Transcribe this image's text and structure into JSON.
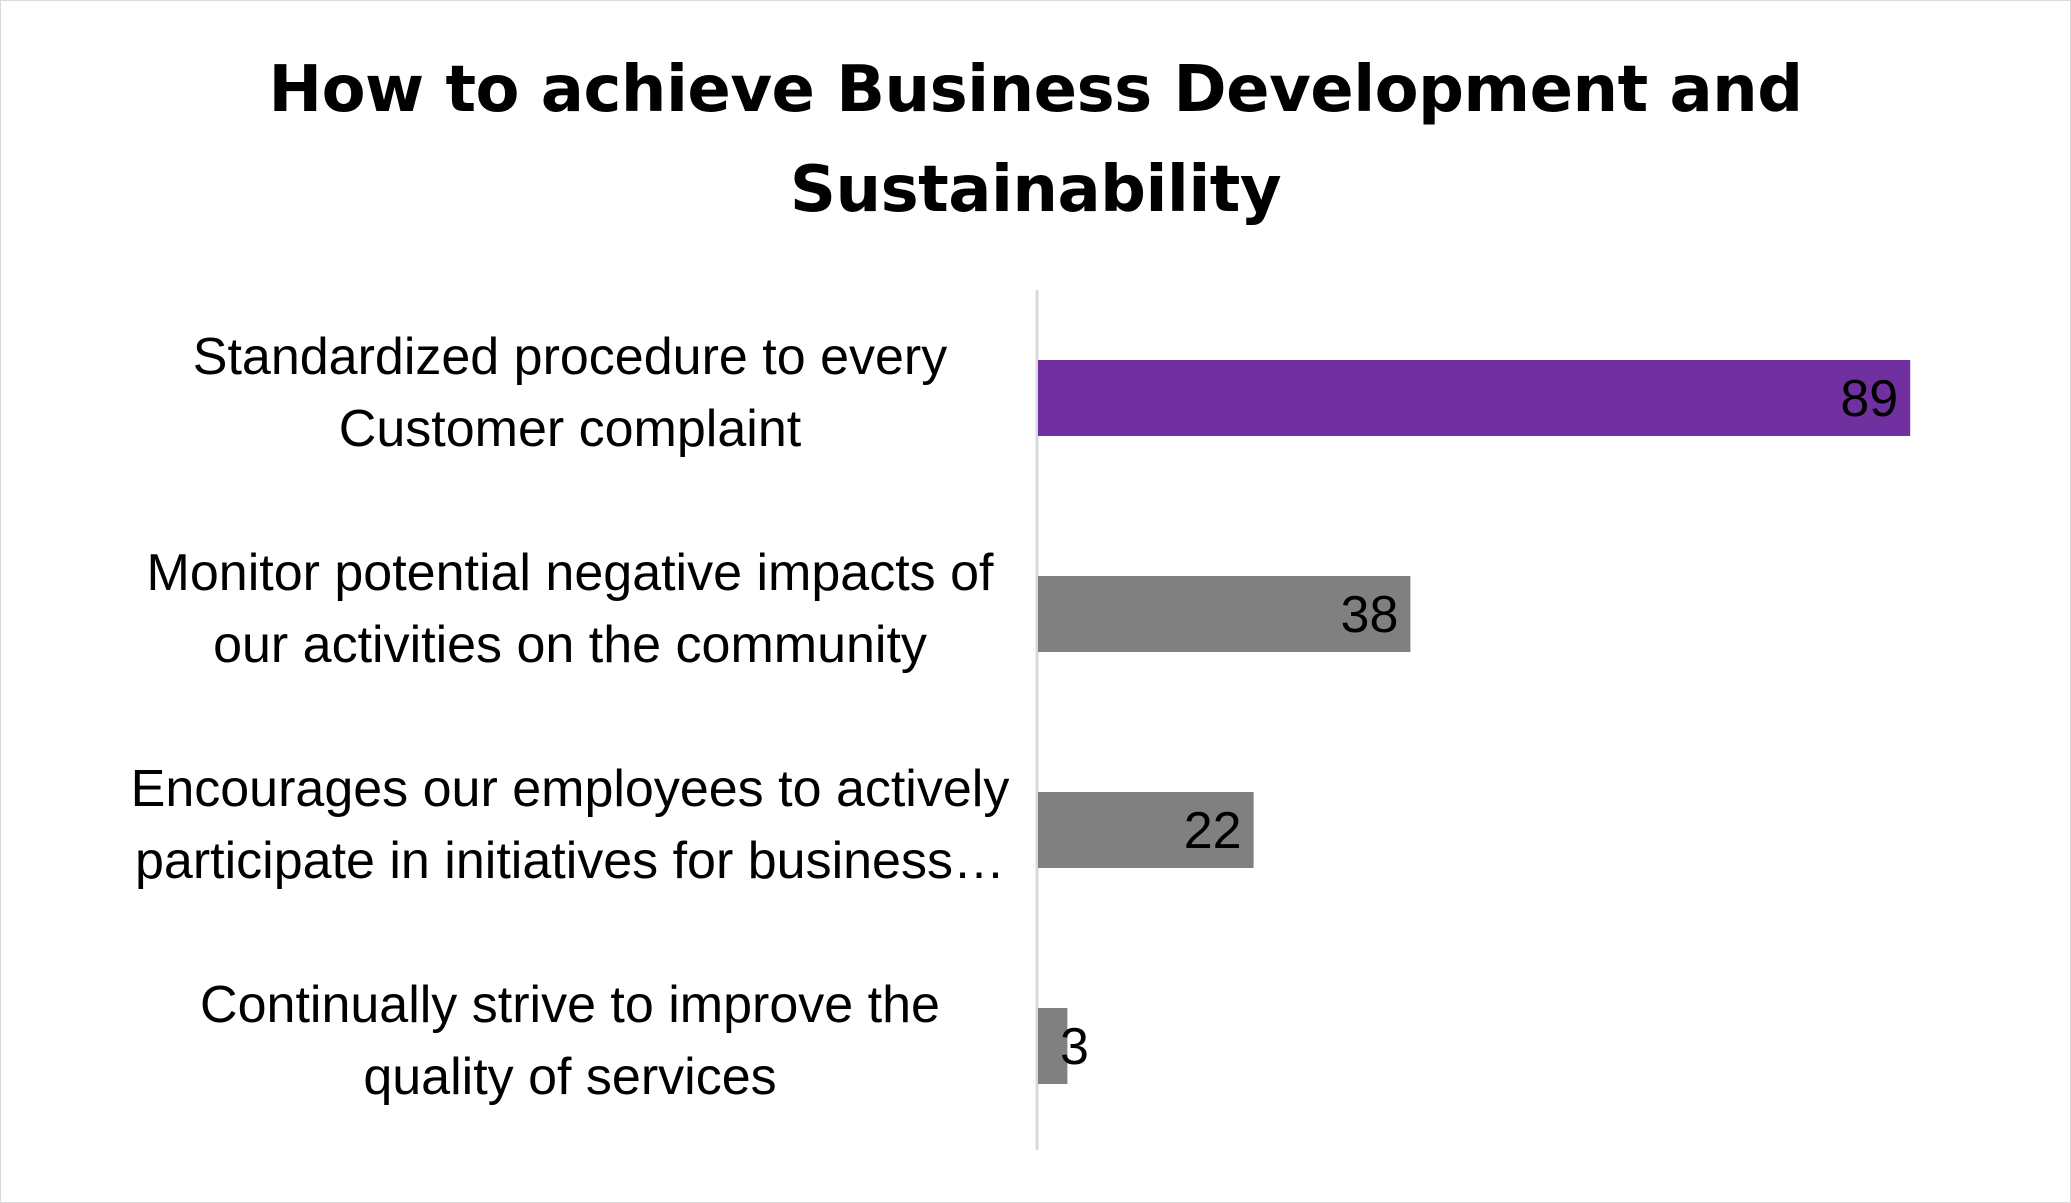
{
  "chart_data": {
    "type": "bar",
    "orientation": "horizontal",
    "title": "How to achieve Business Development and Sustainability",
    "title_lines": [
      "How to achieve Business Development and",
      "Sustainability"
    ],
    "categories": [
      "Standardized procedure to every Customer complaint",
      "Monitor potential negative impacts of our activities on the community",
      "Encourages our employees to actively participate in initiatives for business…",
      "Continually strive to improve the quality of services"
    ],
    "category_lines": [
      [
        "Standardized procedure to every",
        "Customer complaint"
      ],
      [
        "Monitor potential negative impacts of",
        "our activities on the community"
      ],
      [
        "Encourages our employees to actively",
        "participate in initiatives for business…"
      ],
      [
        "Continually strive to improve the",
        "quality of services"
      ]
    ],
    "values": [
      89,
      38,
      22,
      3
    ],
    "value_labels": [
      "89",
      "38",
      "22",
      "3"
    ],
    "bar_colors": [
      "#7030a0",
      "#808080",
      "#808080",
      "#808080"
    ],
    "xlim": [
      0,
      100
    ],
    "grid": false,
    "legend": "none",
    "xlabel": "",
    "ylabel": ""
  }
}
